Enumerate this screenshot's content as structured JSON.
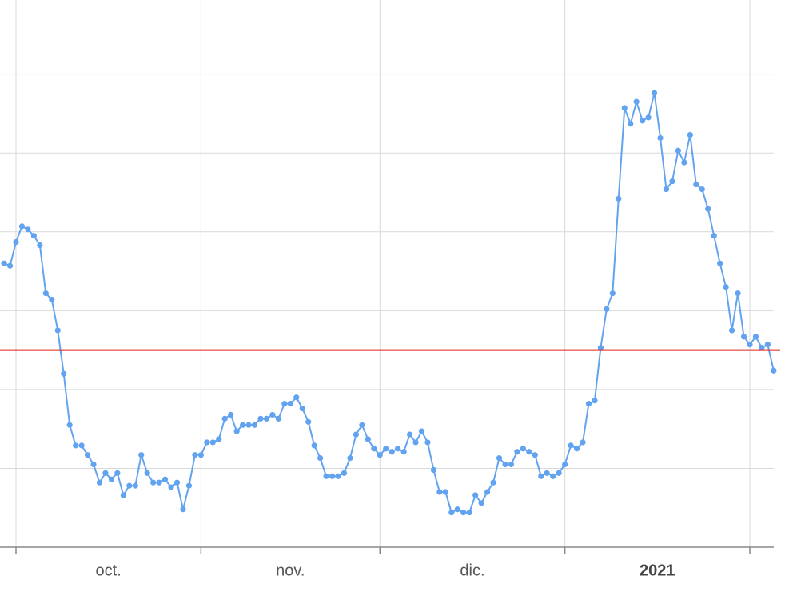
{
  "chart_data": {
    "type": "line",
    "x": [
      -2,
      -1,
      0,
      1,
      2,
      3,
      4,
      5,
      6,
      7,
      8,
      9,
      10,
      11,
      12,
      13,
      14,
      15,
      16,
      17,
      18,
      19,
      20,
      21,
      22,
      23,
      24,
      25,
      26,
      27,
      28,
      29,
      30,
      31,
      32,
      33,
      34,
      35,
      36,
      37,
      38,
      39,
      40,
      41,
      42,
      43,
      44,
      45,
      46,
      47,
      48,
      49,
      50,
      51,
      52,
      53,
      54,
      55,
      56,
      57,
      58,
      59,
      60,
      61,
      62,
      63,
      64,
      65,
      66,
      67,
      68,
      69,
      70,
      71,
      72,
      73,
      74,
      75,
      76,
      77,
      78,
      79,
      80,
      81,
      82,
      83,
      84,
      85,
      86,
      87,
      88,
      89,
      90,
      91,
      92,
      93,
      94,
      95,
      96,
      97,
      98,
      99,
      100,
      101,
      102,
      103,
      104,
      105,
      106,
      107,
      108,
      109,
      110,
      111,
      112,
      113,
      114,
      115,
      116,
      117,
      118,
      119,
      120,
      121,
      122,
      123,
      124,
      125,
      126,
      127
    ],
    "series": [
      {
        "color": "#62a3f0",
        "values": [
          3.6,
          3.57,
          3.87,
          4.07,
          4.03,
          3.95,
          3.83,
          3.22,
          3.14,
          2.75,
          2.2,
          1.55,
          1.29,
          1.29,
          1.17,
          1.05,
          0.82,
          0.94,
          0.86,
          0.94,
          0.66,
          0.78,
          0.78,
          1.17,
          0.94,
          0.82,
          0.82,
          0.86,
          0.76,
          0.82,
          0.48,
          0.78,
          1.17,
          1.17,
          1.33,
          1.33,
          1.37,
          1.63,
          1.68,
          1.47,
          1.55,
          1.55,
          1.55,
          1.63,
          1.63,
          1.68,
          1.63,
          1.82,
          1.82,
          1.9,
          1.76,
          1.59,
          1.29,
          1.13,
          0.9,
          0.9,
          0.9,
          0.94,
          1.13,
          1.43,
          1.55,
          1.37,
          1.25,
          1.17,
          1.25,
          1.21,
          1.25,
          1.21,
          1.43,
          1.33,
          1.47,
          1.33,
          0.98,
          0.7,
          0.7,
          0.44,
          0.48,
          0.44,
          0.44,
          0.66,
          0.56,
          0.7,
          0.82,
          1.13,
          1.05,
          1.05,
          1.21,
          1.25,
          1.21,
          1.17,
          0.9,
          0.94,
          0.9,
          0.94,
          1.05,
          1.29,
          1.25,
          1.33,
          1.82,
          1.86,
          2.53,
          3.02,
          3.22,
          4.42,
          5.57,
          5.37,
          5.65,
          5.41,
          5.45,
          5.76,
          5.19,
          4.54,
          4.64,
          5.03,
          4.88,
          5.23,
          4.6,
          4.54,
          4.29,
          3.95,
          3.6,
          3.3,
          2.75,
          3.22,
          2.67,
          2.57,
          2.67,
          2.53,
          2.57,
          2.24
        ]
      }
    ],
    "xlim": [
      -2.68,
      127.29
    ],
    "xticks": [
      0,
      31,
      61,
      92,
      123
    ],
    "xlabels": [
      {
        "value": 15.5,
        "label": "oct."
      },
      {
        "value": 46,
        "label": "nov."
      },
      {
        "value": 76.5,
        "label": "dic."
      },
      {
        "value": 107.5,
        "label": "2021",
        "bold": true
      }
    ],
    "ylim": [
      0,
      6.94
    ],
    "yticks": [
      1,
      2,
      3,
      4,
      5,
      6
    ],
    "grid": true,
    "reference_line": {
      "value": 2.5,
      "color": "#e0201a"
    }
  }
}
